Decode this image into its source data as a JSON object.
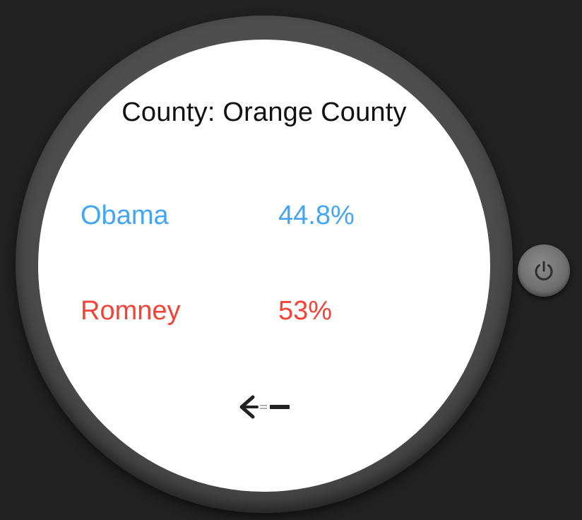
{
  "header": {
    "title": "County: Orange County"
  },
  "results": [
    {
      "name": "Obama",
      "percent": "44.8%",
      "color": "#42a5f5"
    },
    {
      "name": "Romney",
      "percent": "53%",
      "color": "#f44336"
    }
  ],
  "controls": {
    "back_icon": "arrow-left-icon",
    "power_icon": "power-icon"
  },
  "colors": {
    "background": "#212121",
    "bezel": "#4a4a4a",
    "screen": "#ffffff"
  }
}
